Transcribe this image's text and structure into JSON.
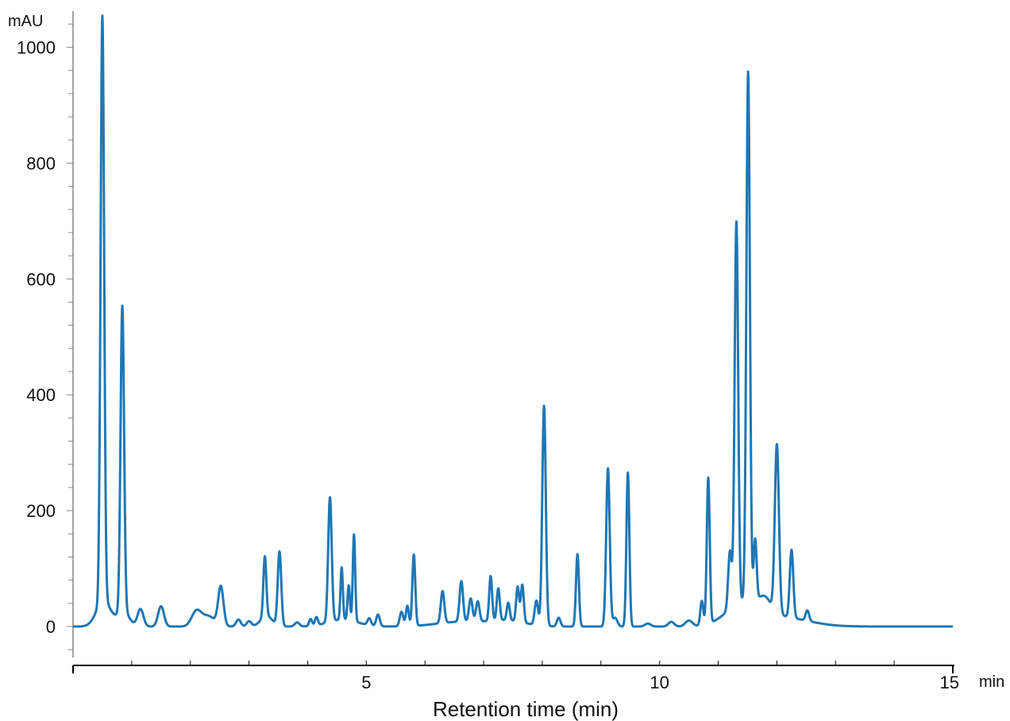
{
  "chart_data": {
    "type": "line",
    "xlabel": "Retention time (min)",
    "x_unit": "min",
    "y_unit": "mAU",
    "xlim": [
      0,
      15
    ],
    "ylim": [
      -50,
      1050
    ],
    "x_ticks": [
      5,
      10,
      15
    ],
    "y_ticks": [
      0,
      200,
      400,
      600,
      800,
      1000
    ],
    "grid": false,
    "series": [
      {
        "color": "#1f77b4",
        "baseline": 0,
        "peaks": [
          [
            0.5,
            1010,
            0.03
          ],
          [
            0.52,
            45,
            0.12
          ],
          [
            0.84,
            528,
            0.03
          ],
          [
            0.86,
            25,
            0.1
          ],
          [
            1.15,
            30,
            0.05
          ],
          [
            1.5,
            35,
            0.05
          ],
          [
            2.1,
            24,
            0.08
          ],
          [
            2.3,
            18,
            0.12
          ],
          [
            2.52,
            67,
            0.045
          ],
          [
            2.82,
            12,
            0.04
          ],
          [
            3.0,
            9,
            0.04
          ],
          [
            3.27,
            104,
            0.025
          ],
          [
            3.3,
            18,
            0.1
          ],
          [
            3.52,
            128,
            0.03
          ],
          [
            3.82,
            7,
            0.04
          ],
          [
            4.05,
            12,
            0.025
          ],
          [
            4.15,
            14,
            0.025
          ],
          [
            4.38,
            215,
            0.03
          ],
          [
            4.58,
            90,
            0.02
          ],
          [
            4.7,
            60,
            0.02
          ],
          [
            4.79,
            150,
            0.02
          ],
          [
            4.6,
            12,
            0.25
          ],
          [
            5.05,
            12,
            0.03
          ],
          [
            5.2,
            20,
            0.03
          ],
          [
            5.6,
            25,
            0.03
          ],
          [
            5.7,
            35,
            0.025
          ],
          [
            5.81,
            123,
            0.025
          ],
          [
            6.3,
            55,
            0.03
          ],
          [
            6.62,
            70,
            0.03
          ],
          [
            6.78,
            40,
            0.03
          ],
          [
            6.9,
            35,
            0.03
          ],
          [
            6.6,
            8,
            0.4
          ],
          [
            7.12,
            77,
            0.025
          ],
          [
            7.25,
            55,
            0.025
          ],
          [
            7.42,
            30,
            0.025
          ],
          [
            7.58,
            60,
            0.025
          ],
          [
            7.66,
            65,
            0.025
          ],
          [
            7.4,
            10,
            0.3
          ],
          [
            7.9,
            42,
            0.03
          ],
          [
            8.03,
            380,
            0.03
          ],
          [
            8.28,
            15,
            0.03
          ],
          [
            8.6,
            125,
            0.025
          ],
          [
            9.12,
            273,
            0.03
          ],
          [
            9.24,
            15,
            0.04
          ],
          [
            9.46,
            266,
            0.025
          ],
          [
            9.8,
            5,
            0.05
          ],
          [
            10.2,
            8,
            0.05
          ],
          [
            10.5,
            10,
            0.06
          ],
          [
            10.72,
            42,
            0.025
          ],
          [
            10.83,
            252,
            0.025
          ],
          [
            11.2,
            100,
            0.03
          ],
          [
            11.31,
            660,
            0.03
          ],
          [
            11.51,
            912,
            0.03
          ],
          [
            11.63,
            105,
            0.025
          ],
          [
            11.8,
            20,
            0.1
          ],
          [
            11.45,
            40,
            0.3
          ],
          [
            12.0,
            290,
            0.035
          ],
          [
            12.25,
            117,
            0.03
          ],
          [
            12.52,
            18,
            0.03
          ],
          [
            12.1,
            15,
            0.45
          ]
        ]
      }
    ]
  }
}
